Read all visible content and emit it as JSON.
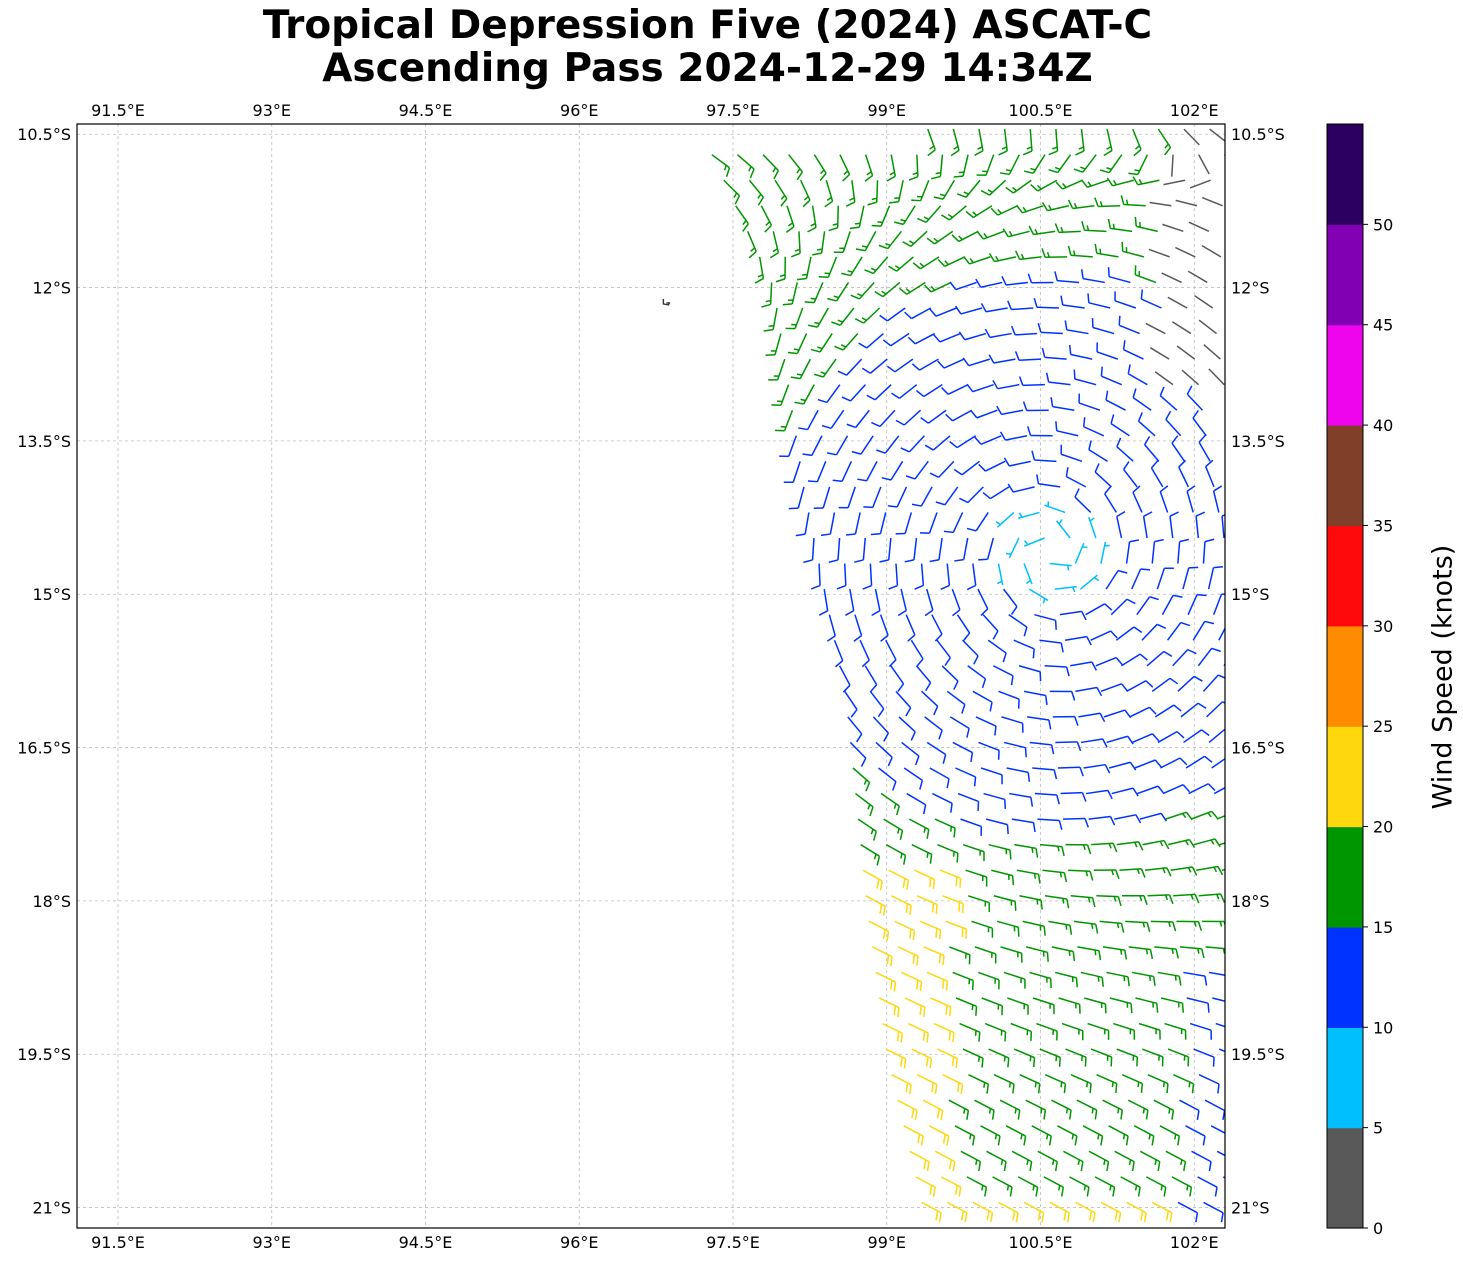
{
  "title": {
    "line1": "Tropical Depression Five (2024) ASCAT-C",
    "line2": "Ascending Pass 2024-12-29 14:34Z"
  },
  "map": {
    "lon_range": [
      91.1,
      102.3
    ],
    "lat_range": [
      -21.2,
      -10.4
    ],
    "lon_ticks": [
      {
        "value": 91.5,
        "label": "91.5°E"
      },
      {
        "value": 93.0,
        "label": "93°E"
      },
      {
        "value": 94.5,
        "label": "94.5°E"
      },
      {
        "value": 96.0,
        "label": "96°E"
      },
      {
        "value": 97.5,
        "label": "97.5°E"
      },
      {
        "value": 99.0,
        "label": "99°E"
      },
      {
        "value": 100.5,
        "label": "100.5°E"
      },
      {
        "value": 102.0,
        "label": "102°E"
      }
    ],
    "lat_ticks": [
      {
        "value": -10.5,
        "label": "10.5°S"
      },
      {
        "value": -12.0,
        "label": "12°S"
      },
      {
        "value": -13.5,
        "label": "13.5°S"
      },
      {
        "value": -15.0,
        "label": "15°S"
      },
      {
        "value": -16.5,
        "label": "16.5°S"
      },
      {
        "value": -18.0,
        "label": "18°S"
      },
      {
        "value": -19.5,
        "label": "19.5°S"
      },
      {
        "value": -21.0,
        "label": "21°S"
      }
    ],
    "gridlines": true,
    "land_feature_lonlat": [
      96.85,
      -12.15
    ],
    "wind_barbs": {
      "center_lonlat": [
        100.6,
        -14.6
      ],
      "swath_west_edge": [
        [
          97.2,
          -10.5
        ],
        [
          97.9,
          -12.0
        ],
        [
          98.2,
          -14.0
        ],
        [
          98.6,
          -16.0
        ],
        [
          98.8,
          -18.0
        ],
        [
          99.0,
          -19.5
        ],
        [
          99.4,
          -21.2
        ]
      ],
      "swath_east_edge": 102.3,
      "grid_spacing_deg": 0.25
    }
  },
  "colorbar": {
    "label": "Wind Speed (knots)",
    "ticks": [
      "0",
      "5",
      "10",
      "15",
      "20",
      "25",
      "30",
      "35",
      "40",
      "45",
      "50"
    ],
    "colors": [
      "#595959",
      "#00bfff",
      "#0033ff",
      "#009600",
      "#ffd70e",
      "#ff8c00",
      "#ff0a0a",
      "#7f3f28",
      "#ee05ee",
      "#8200b4",
      "#2c0060"
    ]
  }
}
